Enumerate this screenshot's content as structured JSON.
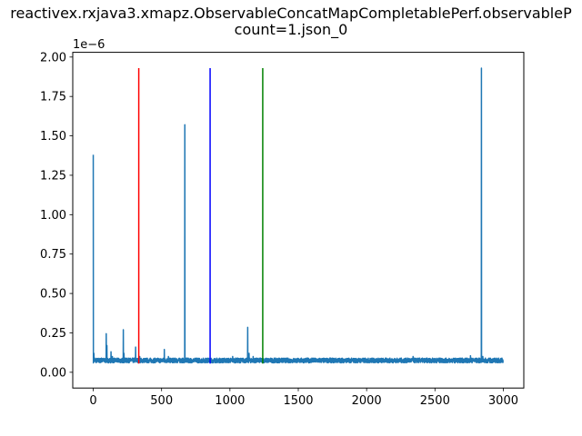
{
  "chart_data": {
    "type": "line",
    "title_lines": [
      "reactivex.rxjava3.xmapz.ObservableConcatMapCompletablePerf.observableP",
      "count=1.json_0"
    ],
    "xlabel": "",
    "ylabel": "",
    "y_offset_text": "1e−6",
    "xlim": [
      -150,
      3150
    ],
    "ylim": [
      -1e-07,
      2.03e-06
    ],
    "x_ticks": [
      0,
      500,
      1000,
      1500,
      2000,
      2500,
      3000
    ],
    "x_tick_labels": [
      "0",
      "500",
      "1000",
      "1500",
      "2000",
      "2500",
      "3000"
    ],
    "y_ticks": [
      0,
      2.5e-07,
      5e-07,
      7.5e-07,
      1e-06,
      1.25e-06,
      1.5e-06,
      1.75e-06,
      2e-06
    ],
    "y_tick_labels": [
      "0.00",
      "0.25",
      "0.50",
      "0.75",
      "1.00",
      "1.25",
      "1.50",
      "1.75",
      "2.00"
    ],
    "grid": false,
    "series": [
      {
        "color": "#1f77b4",
        "baseline": 7.5e-08,
        "n_points": 3000,
        "points": [
          [
            0,
            1.38e-06
          ],
          [
            5,
            1.2e-07
          ],
          [
            10,
            9e-08
          ],
          [
            30,
            7e-08
          ],
          [
            60,
            9e-08
          ],
          [
            95,
            2.45e-07
          ],
          [
            100,
            1.7e-07
          ],
          [
            130,
            1.3e-07
          ],
          [
            140,
            1e-07
          ],
          [
            220,
            2.7e-07
          ],
          [
            225,
            1.2e-07
          ],
          [
            300,
            9e-08
          ],
          [
            310,
            1.6e-07
          ],
          [
            340,
            1e-07
          ],
          [
            520,
            1.45e-07
          ],
          [
            550,
            1e-07
          ],
          [
            670,
            1.57e-06
          ],
          [
            760,
            9e-08
          ],
          [
            1020,
            1e-07
          ],
          [
            1130,
            2.85e-07
          ],
          [
            1140,
            1.2e-07
          ],
          [
            1170,
            1e-07
          ],
          [
            1360,
            9e-08
          ],
          [
            1600,
            9e-08
          ],
          [
            2040,
            9e-08
          ],
          [
            2340,
            1e-07
          ],
          [
            2700,
            9e-08
          ],
          [
            2760,
            1.05e-07
          ],
          [
            2840,
            1.93e-06
          ],
          [
            2850,
            1e-07
          ],
          [
            2990,
            9e-08
          ]
        ]
      }
    ],
    "vlines": [
      {
        "x": 333,
        "ymin": 5.5e-08,
        "ymax": 1.93e-06,
        "color": "#ff0000"
      },
      {
        "x": 855,
        "ymin": 5.5e-08,
        "ymax": 1.93e-06,
        "color": "#0000ff"
      },
      {
        "x": 1240,
        "ymin": 5.5e-08,
        "ymax": 1.93e-06,
        "color": "#008000"
      }
    ]
  }
}
